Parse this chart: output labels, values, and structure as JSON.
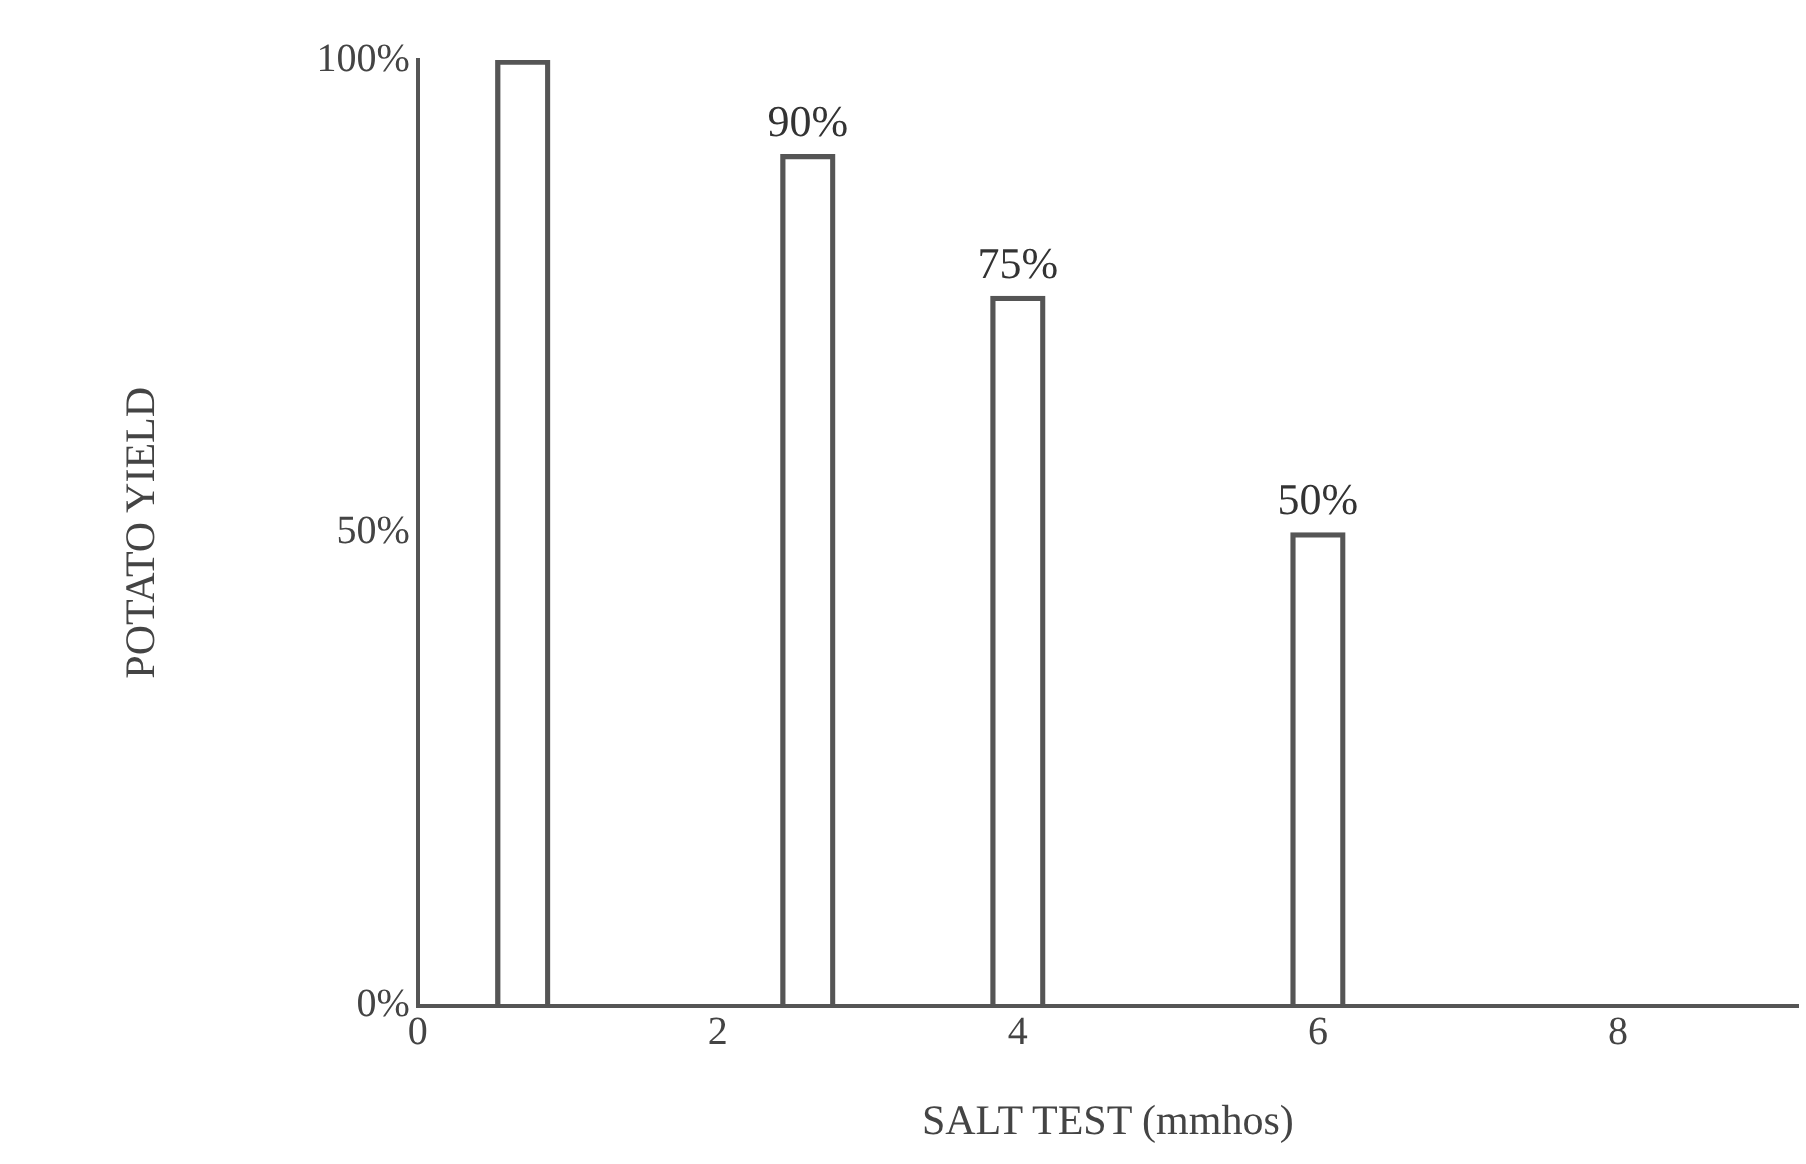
{
  "chart_data": {
    "type": "bar",
    "xlabel": "SALT TEST (mmhos)",
    "ylabel": "POTATO YIELD",
    "x": [
      0.7,
      2.6,
      4.0,
      6.0
    ],
    "values": [
      100,
      90,
      75,
      50
    ],
    "value_labels": [
      null,
      "90%",
      "75%",
      "50%"
    ],
    "color": "#555555",
    "xlim": [
      0,
      9.2
    ],
    "xticks": [
      0,
      2,
      4,
      6,
      8
    ],
    "ylim": [
      0,
      100
    ],
    "yticks": [
      {
        "value": 0,
        "label": "0%"
      },
      {
        "value": 50,
        "label": "50%"
      },
      {
        "value": 100,
        "label": "100%"
      }
    ],
    "grid": false,
    "legend": false
  }
}
